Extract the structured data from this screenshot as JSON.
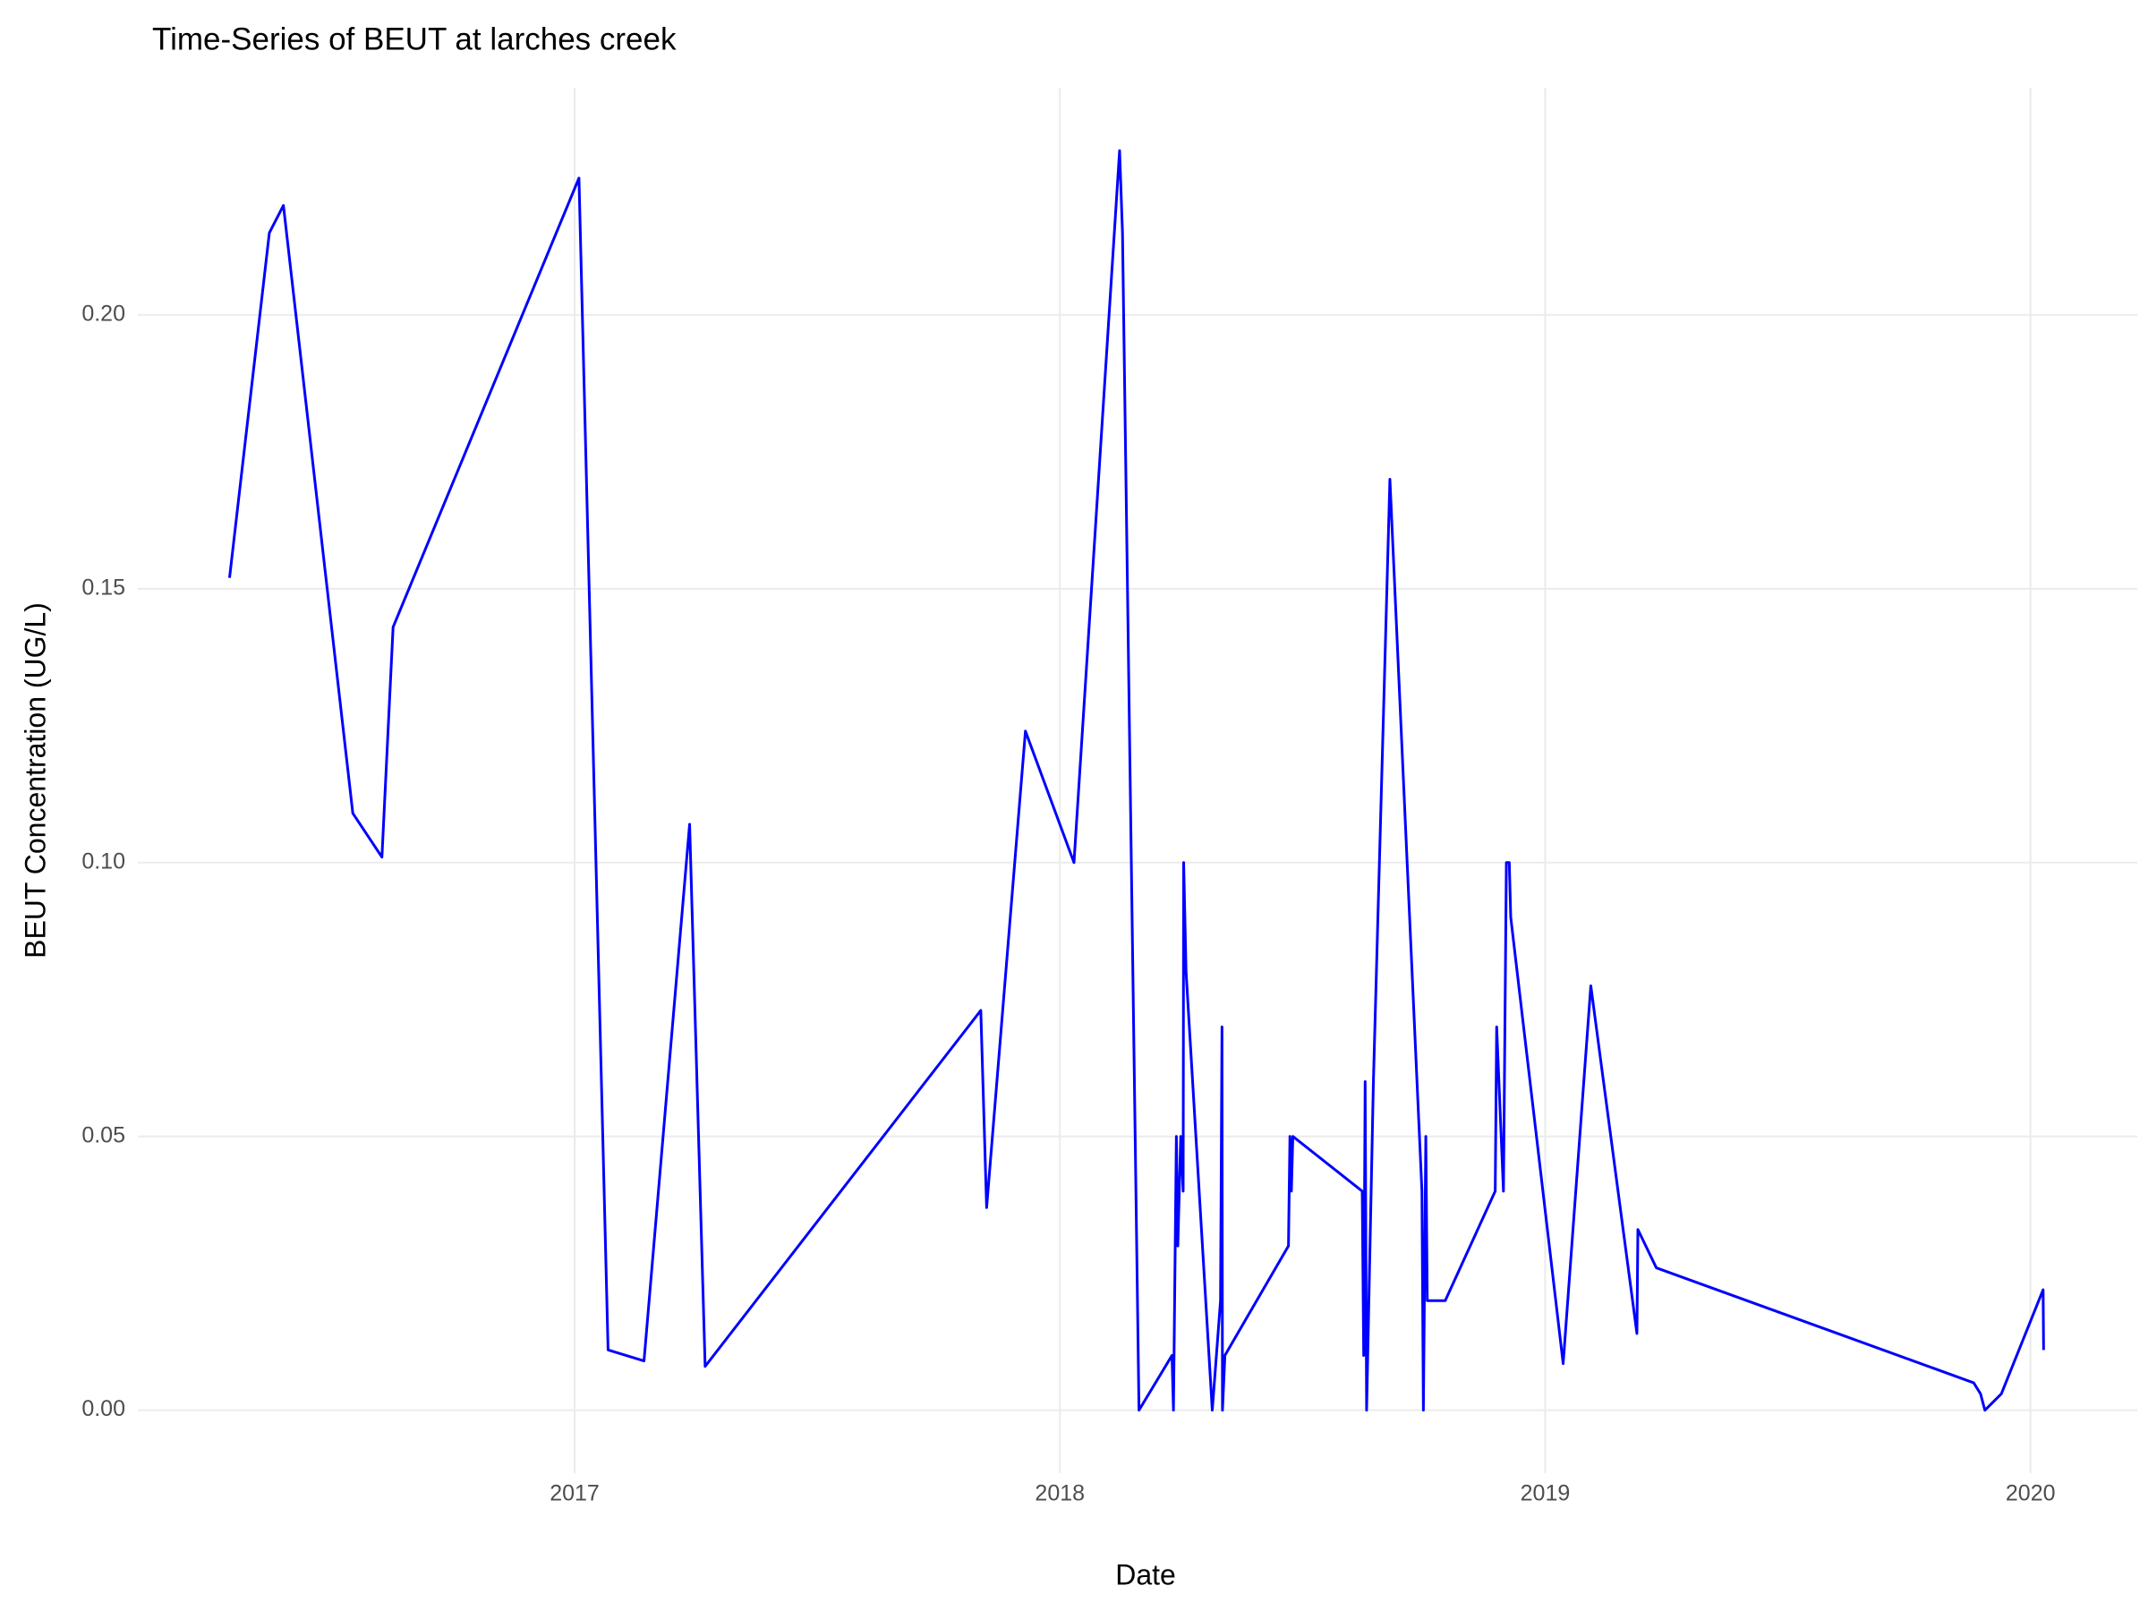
{
  "chart_data": {
    "type": "line",
    "title": "Time-Series of BEUT at larches creek",
    "x_label": "Date",
    "y_label": "BEUT Concentration (UG/L)",
    "x": [
      2016.289,
      2016.371,
      2016.4,
      2016.543,
      2016.603,
      2016.626,
      2017.009,
      2017.069,
      2017.143,
      2017.237,
      2017.269,
      2017.837,
      2017.849,
      2017.929,
      2018.029,
      2018.123,
      2018.129,
      2018.163,
      2018.231,
      2018.234,
      2018.24,
      2018.243,
      2018.249,
      2018.254,
      2018.255,
      2018.26,
      2018.314,
      2018.331,
      2018.334,
      2018.335,
      2018.34,
      2018.471,
      2018.474,
      2018.477,
      2018.48,
      2018.623,
      2018.626,
      2018.629,
      2018.632,
      2018.646,
      2018.68,
      2018.746,
      2018.749,
      2018.751,
      2018.754,
      2018.757,
      2018.794,
      2018.897,
      2018.9,
      2018.914,
      2018.92,
      2018.926,
      2018.929,
      2019.037,
      2019.094,
      2019.189,
      2019.191,
      2019.229,
      2019.883,
      2019.897,
      2019.906,
      2019.94,
      2020.026,
      2020.027
    ],
    "series": [
      {
        "name": "BEUT",
        "color": "#0000ff",
        "values": [
          0.152,
          0.215,
          0.22,
          0.109,
          0.101,
          0.143,
          0.225,
          0.011,
          0.009,
          0.107,
          0.008,
          0.073,
          0.037,
          0.124,
          0.1,
          0.23,
          0.215,
          0,
          0.01,
          0,
          0.05,
          0.03,
          0.05,
          0.04,
          0.1,
          0.08,
          0,
          0.02,
          0.07,
          0,
          0.01,
          0.03,
          0.05,
          0.04,
          0.05,
          0.04,
          0.01,
          0.06,
          0,
          0.06,
          0.17,
          0.04,
          0,
          0.02,
          0.05,
          0.02,
          0.02,
          0.04,
          0.07,
          0.04,
          0.1,
          0.1,
          0.09,
          0.0085,
          0.0775,
          0.014,
          0.033,
          0.026,
          0.005,
          0.003,
          0,
          0.003,
          0.022,
          0.011
        ]
      }
    ],
    "xlim": [
      2016.1,
      2020.22
    ],
    "xticks": [
      2017,
      2018,
      2019,
      2020
    ],
    "ylim": [
      -0.0115,
      0.2415
    ],
    "yticks": [
      {
        "value": 0,
        "label": "0.00"
      },
      {
        "value": 0.05,
        "label": "0.05"
      },
      {
        "value": 0.1,
        "label": "0.10"
      },
      {
        "value": 0.15,
        "label": "0.15"
      },
      {
        "value": 0.2,
        "label": "0.20"
      }
    ],
    "grid": true
  }
}
